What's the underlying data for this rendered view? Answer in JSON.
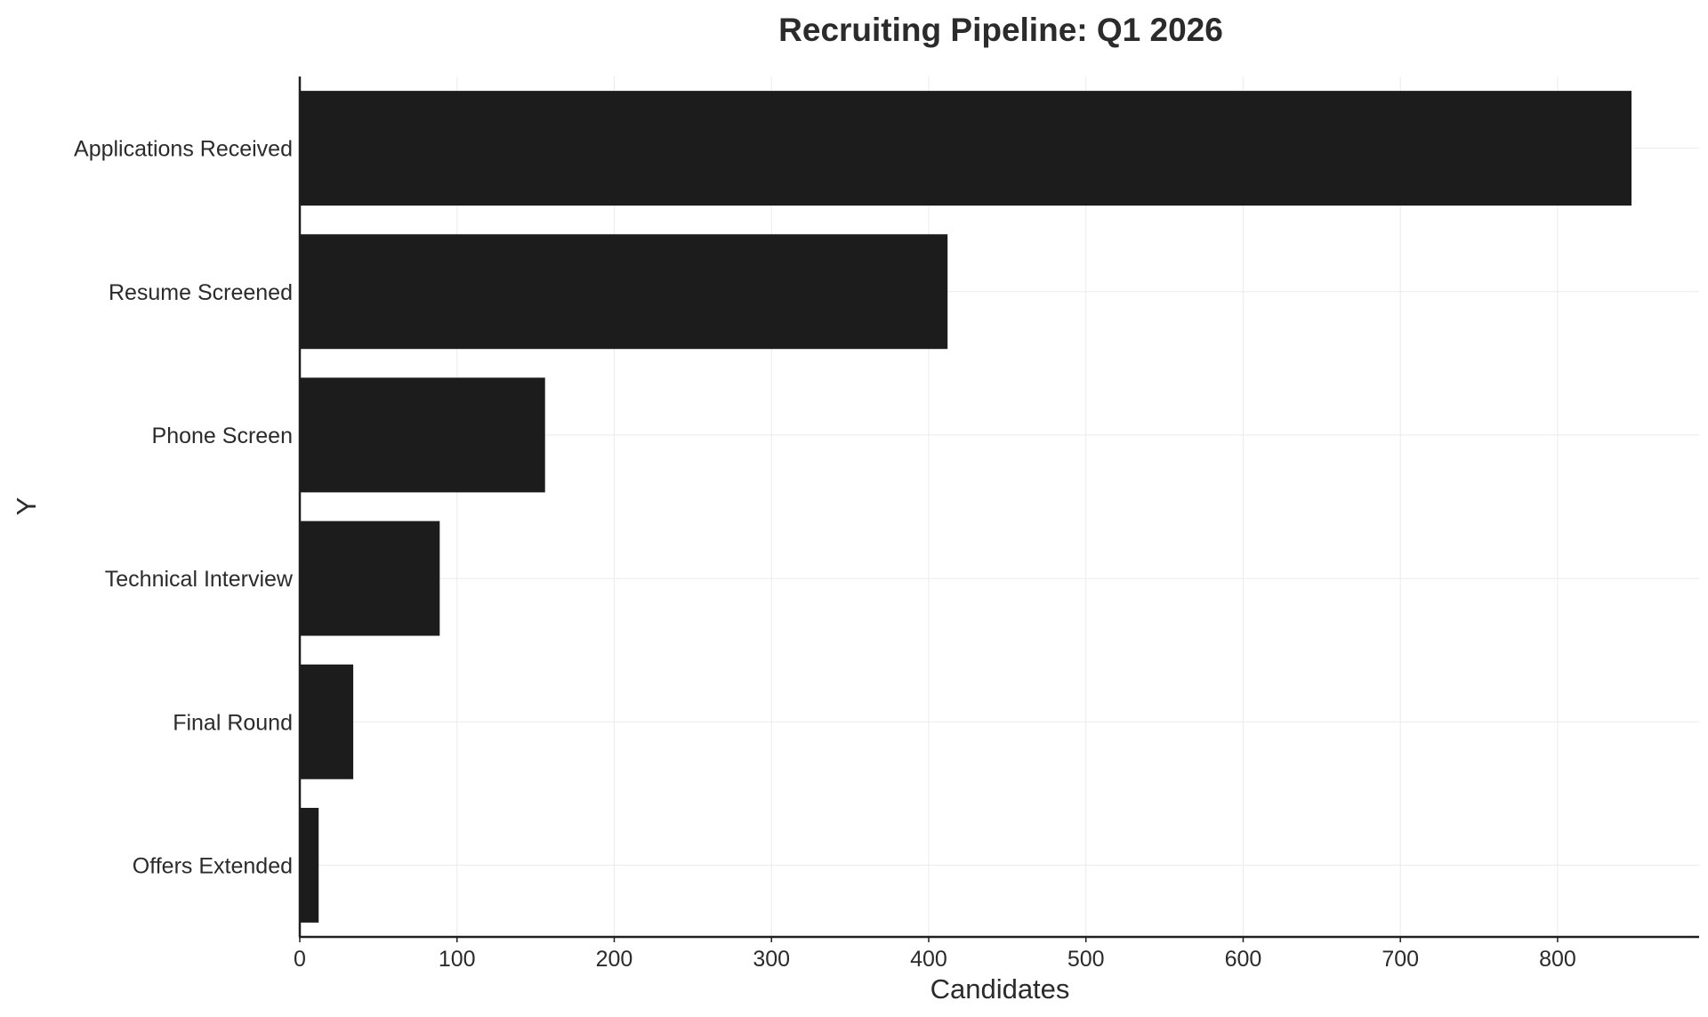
{
  "chart_data": {
    "type": "bar",
    "orientation": "horizontal",
    "title": "Recruiting Pipeline: Q1 2026",
    "xlabel": "Candidates",
    "ylabel": "Y",
    "categories": [
      "Applications Received",
      "Resume Screened",
      "Phone Screen",
      "Technical Interview",
      "Final Round",
      "Offers Extended"
    ],
    "values": [
      847,
      412,
      156,
      89,
      34,
      12
    ],
    "xlim": [
      0,
      890
    ],
    "xticks": [
      0,
      100,
      200,
      300,
      400,
      500,
      600,
      700,
      800
    ],
    "grid": true,
    "bar_color": "#1c1c1c"
  }
}
